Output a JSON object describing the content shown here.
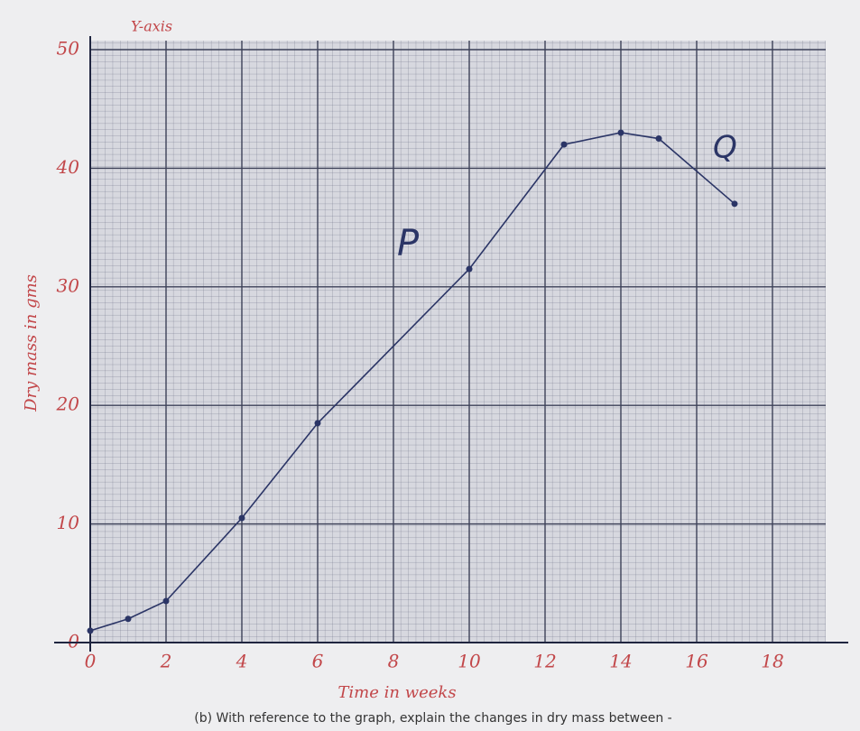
{
  "chart_data": {
    "type": "line",
    "y_axis_tag": "Y-axis",
    "xlabel": "Time in weeks",
    "ylabel": "Dry mass in gms",
    "x": [
      0,
      1,
      2,
      4,
      6,
      10,
      12.5,
      14,
      15,
      17
    ],
    "series": [
      {
        "name": "Dry mass",
        "color": "#2b3566",
        "values": [
          1,
          2,
          3.5,
          10.5,
          18.5,
          31.5,
          42,
          43,
          42.5,
          37
        ]
      }
    ],
    "xlim": [
      0,
      19
    ],
    "ylim": [
      0,
      50
    ],
    "xticks": [
      0,
      2,
      4,
      6,
      8,
      10,
      12,
      14,
      16,
      18
    ],
    "yticks": [
      0,
      10,
      20,
      30,
      40,
      50
    ],
    "grid": true,
    "annotations": [
      "P",
      "Q"
    ],
    "caption": "(b) With reference to the graph, explain the changes in dry mass between -"
  }
}
